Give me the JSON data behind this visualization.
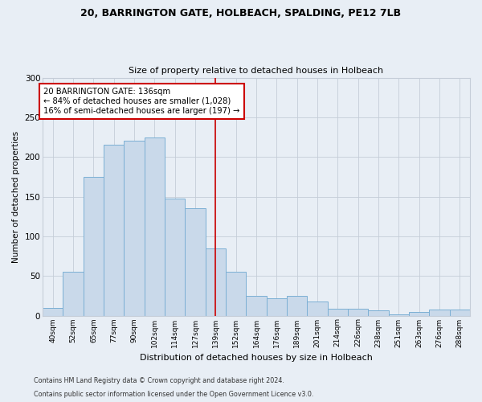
{
  "title1": "20, BARRINGTON GATE, HOLBEACH, SPALDING, PE12 7LB",
  "title2": "Size of property relative to detached houses in Holbeach",
  "xlabel": "Distribution of detached houses by size in Holbeach",
  "ylabel": "Number of detached properties",
  "categories": [
    "40sqm",
    "52sqm",
    "65sqm",
    "77sqm",
    "90sqm",
    "102sqm",
    "114sqm",
    "127sqm",
    "139sqm",
    "152sqm",
    "164sqm",
    "176sqm",
    "189sqm",
    "201sqm",
    "214sqm",
    "226sqm",
    "238sqm",
    "251sqm",
    "263sqm",
    "276sqm",
    "288sqm"
  ],
  "bar_heights": [
    10,
    55,
    175,
    215,
    220,
    225,
    147,
    135,
    85,
    55,
    25,
    22,
    25,
    18,
    9,
    9,
    7,
    2,
    5,
    8,
    8
  ],
  "bar_color": "#c9d9ea",
  "bar_edge_color": "#7bafd4",
  "vline_x_index": 8,
  "vline_color": "#cc0000",
  "annotation_line1": "20 BARRINGTON GATE: 136sqm",
  "annotation_line2": "← 84% of detached houses are smaller (1,028)",
  "annotation_line3": "16% of semi-detached houses are larger (197) →",
  "annotation_box_edgecolor": "#cc0000",
  "annotation_box_facecolor": "#ffffff",
  "ylim": [
    0,
    300
  ],
  "yticks": [
    0,
    50,
    100,
    150,
    200,
    250,
    300
  ],
  "fig_facecolor": "#e8eef5",
  "axes_facecolor": "#e8eef5",
  "grid_color": "#c5cdd8",
  "footer1": "Contains HM Land Registry data © Crown copyright and database right 2024.",
  "footer2": "Contains public sector information licensed under the Open Government Licence v3.0."
}
